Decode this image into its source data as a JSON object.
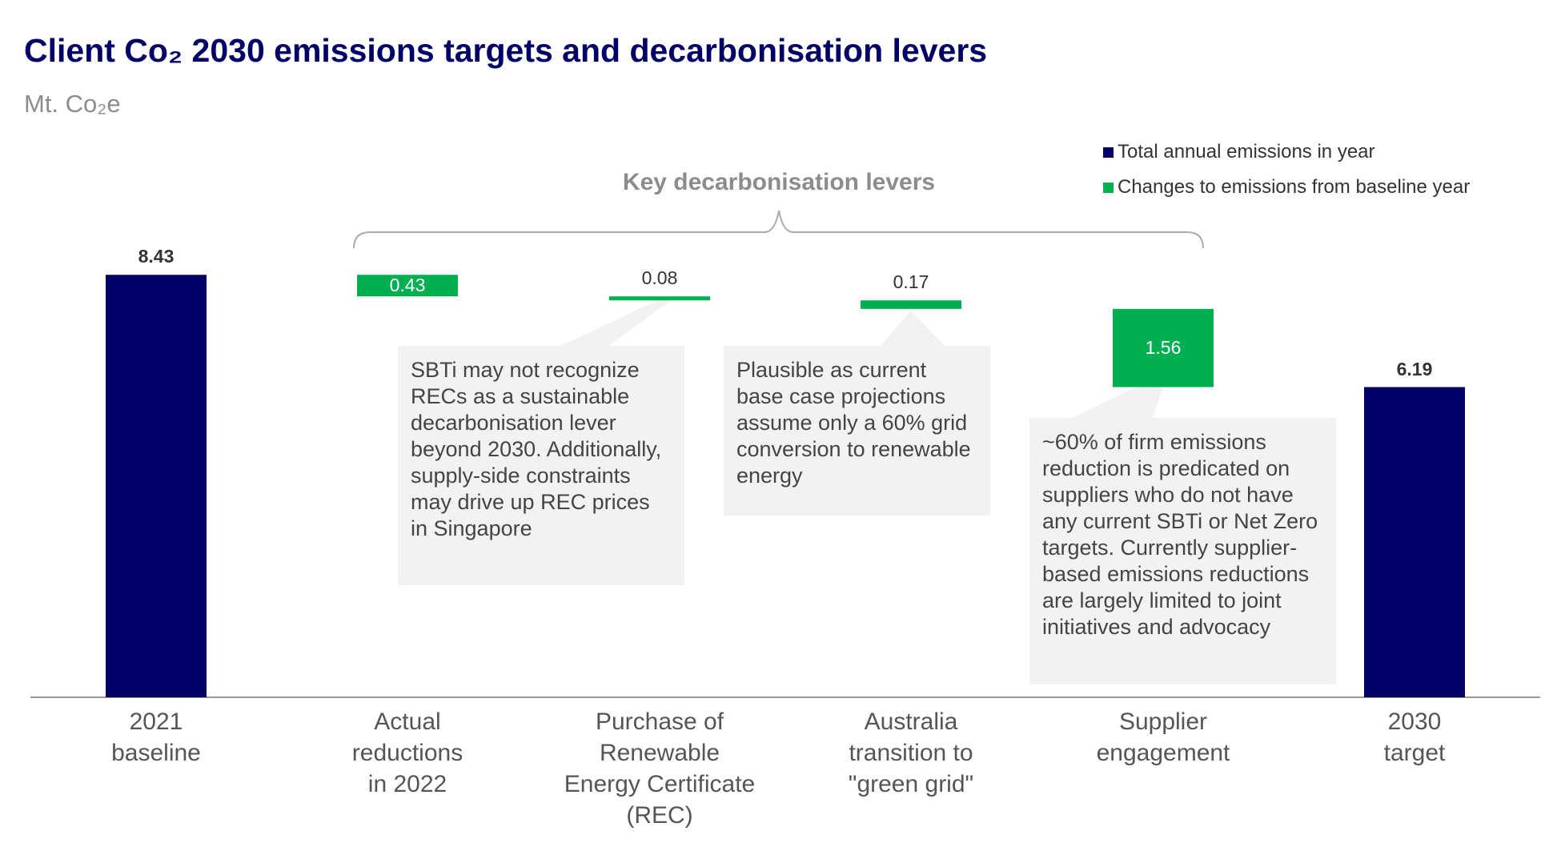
{
  "chart_data": {
    "type": "waterfall",
    "title": "Client Co₂ 2030 emissions targets and decarbonisation levers",
    "subtitle": "Mt. Co₂e",
    "categories": [
      "2021\nbaseline",
      "Actual\nreductions\nin 2022",
      "Purchase of\nRenewable\nEnergy Certificate\n(REC)",
      "Australia\ntransition to\n\"green grid\"",
      "Supplier\nengagement",
      "2030\ntarget"
    ],
    "series": [
      {
        "name": "Total annual emissions in year",
        "color": "#000066",
        "values": [
          8.43,
          null,
          null,
          null,
          null,
          6.19
        ]
      },
      {
        "name": "Changes to emissions from baseline year",
        "color": "#00b050",
        "values": [
          null,
          0.43,
          0.08,
          0.17,
          1.56,
          null
        ]
      }
    ],
    "ylim": [
      0,
      10
    ],
    "annotations": [
      "Key decarbonisation levers",
      "SBTi may not recognize RECs as a sustainable decarbonisation lever beyond 2030. Additionally, supply-side constraints may drive up REC prices in Singapore",
      "Plausible as current base case projections assume only a 60% grid conversion to renewable energy",
      "~60% of firm emissions reduction is predicated on suppliers who do not have any current SBTi or Net Zero targets. Currently supplier-based emissions reductions are largely limited to joint initiatives and advocacy"
    ]
  }
}
